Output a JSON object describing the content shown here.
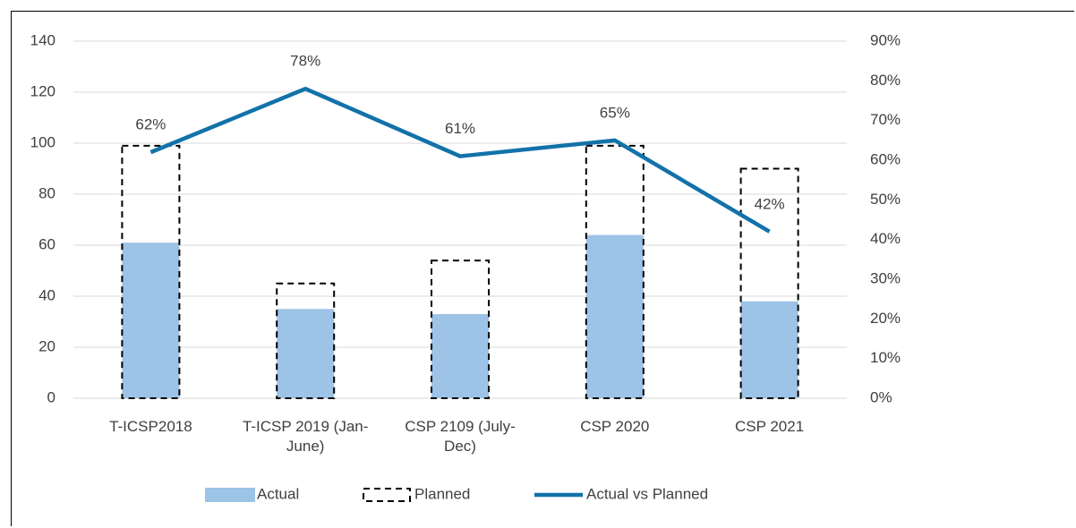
{
  "chart_data": {
    "type": "bar",
    "categories": [
      "T-ICSP2018",
      "T-ICSP 2019 (Jan-June)",
      "CSP 2109 (July-Dec)",
      "CSP 2020",
      "CSP 2021"
    ],
    "series": [
      {
        "name": "Actual",
        "type": "bar",
        "color": "#9dc3e6",
        "values": [
          61,
          35,
          33,
          64,
          38
        ]
      },
      {
        "name": "Planned",
        "type": "bar",
        "style": "dashed",
        "color": "#000000",
        "values": [
          99,
          45,
          54,
          99,
          90
        ]
      },
      {
        "name": "Actual vs Planned",
        "type": "line",
        "axis": "y2",
        "color": "#1272a9",
        "values": [
          62,
          78,
          61,
          65,
          42
        ],
        "value_labels": [
          "62%",
          "78%",
          "61%",
          "65%",
          "42%"
        ]
      }
    ],
    "ylim": [
      0,
      140
    ],
    "yticks": [
      0,
      20,
      40,
      60,
      80,
      100,
      120,
      140
    ],
    "y2lim": [
      0,
      90
    ],
    "y2ticks": [
      {
        "value": 0,
        "label": "0%"
      },
      {
        "value": 10,
        "label": "10%"
      },
      {
        "value": 20,
        "label": "20%"
      },
      {
        "value": 30,
        "label": "30%"
      },
      {
        "value": 40,
        "label": "40%"
      },
      {
        "value": 50,
        "label": "50%"
      },
      {
        "value": 60,
        "label": "60%"
      },
      {
        "value": 70,
        "label": "70%"
      },
      {
        "value": 80,
        "label": "80%"
      },
      {
        "value": 90,
        "label": "90%"
      }
    ],
    "grid": true,
    "legend": "bottom"
  }
}
